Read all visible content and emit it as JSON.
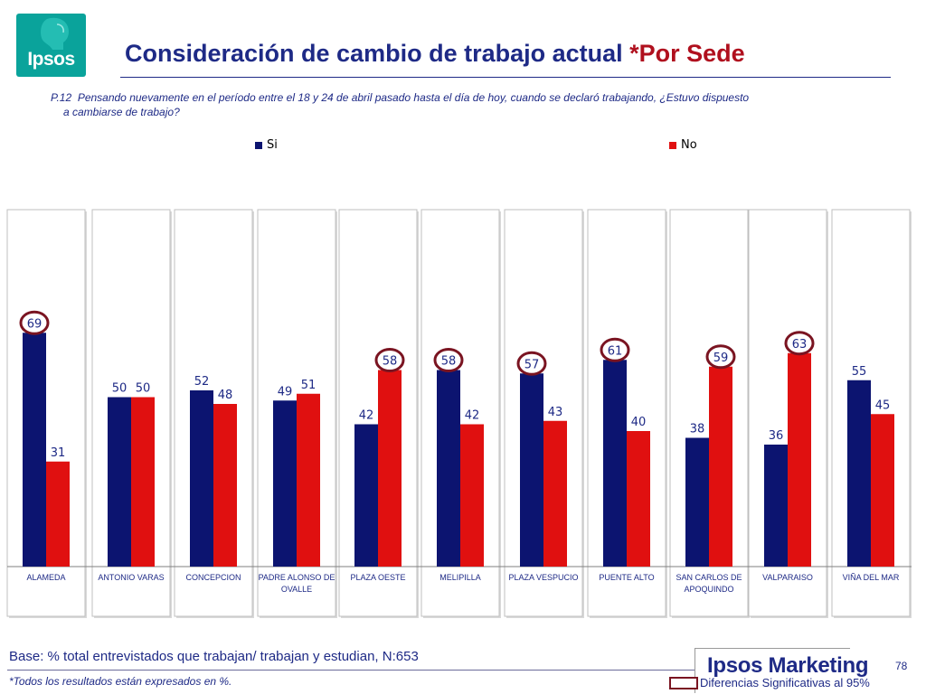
{
  "logo": {
    "text": "Ipsos"
  },
  "title": {
    "main": "Consideración de cambio de trabajo actual ",
    "accent": "*Por Sede"
  },
  "question": {
    "number": "P.12",
    "text_line1": "Pensando nuevamente en el período entre el 18 y 24 de abril pasado hasta el día de hoy, cuando se declaró trabajando, ¿Estuvo dispuesto",
    "text_line2": "a cambiarse de trabajo?"
  },
  "colors": {
    "si": "#0c1470",
    "no": "#e01010",
    "highlight": "#7a1421",
    "brand_blue": "#1e2a86"
  },
  "chart_data": {
    "type": "bar",
    "categories": [
      "ALAMEDA",
      "ANTONIO VARAS",
      "CONCEPCION",
      "PADRE ALONSO DE OVALLE",
      "PLAZA OESTE",
      "MELIPILLA",
      "PLAZA VESPUCIO",
      "PUENTE ALTO",
      "SAN CARLOS DE APOQUINDO",
      "VALPARAISO",
      "VIÑA DEL MAR"
    ],
    "category_lines": [
      [
        "ALAMEDA"
      ],
      [
        "ANTONIO VARAS"
      ],
      [
        "CONCEPCION"
      ],
      [
        "PADRE ALONSO DE",
        "OVALLE"
      ],
      [
        "PLAZA OESTE"
      ],
      [
        "MELIPILLA"
      ],
      [
        "PLAZA VESPUCIO"
      ],
      [
        "PUENTE ALTO"
      ],
      [
        "SAN CARLOS DE",
        "APOQUINDO"
      ],
      [
        "VALPARAISO"
      ],
      [
        "VIÑA DEL MAR"
      ]
    ],
    "series": [
      {
        "name": "Si",
        "values": [
          69,
          50,
          52,
          49,
          42,
          58,
          57,
          61,
          38,
          36,
          55
        ],
        "highlighted": [
          true,
          false,
          false,
          false,
          false,
          true,
          true,
          true,
          false,
          false,
          false
        ]
      },
      {
        "name": "No",
        "values": [
          31,
          50,
          48,
          51,
          58,
          42,
          43,
          40,
          59,
          63,
          45
        ],
        "highlighted": [
          false,
          false,
          false,
          false,
          true,
          false,
          false,
          false,
          true,
          true,
          false
        ]
      }
    ],
    "ylim": [
      0,
      100
    ],
    "legend_position": "top",
    "value_labels": true
  },
  "footer": {
    "base": "Base: % total entrevistados que trabajan/ trabajan y estudian, N:653",
    "note": "*Todos los resultados están expresados en %.",
    "brand": "Ipsos Marketing",
    "page": "78",
    "sig_legend": "Diferencias Significativas al 95%"
  }
}
